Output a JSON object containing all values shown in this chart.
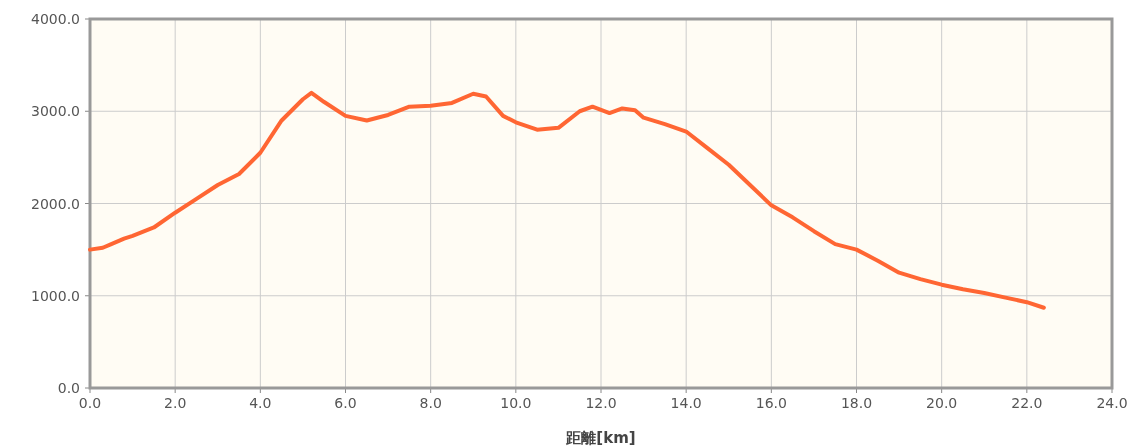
{
  "chart_data": {
    "type": "line",
    "xlabel": "距離[km]",
    "grid": true,
    "x": [
      0,
      0.3,
      0.5,
      0.8,
      1.0,
      1.5,
      2.0,
      2.5,
      3.0,
      3.5,
      4.0,
      4.5,
      5.0,
      5.2,
      5.5,
      6.0,
      6.5,
      7.0,
      7.5,
      8.0,
      8.5,
      9.0,
      9.3,
      9.7,
      10.0,
      10.5,
      11.0,
      11.5,
      11.8,
      12.2,
      12.5,
      12.8,
      13.0,
      13.5,
      14.0,
      14.5,
      15.0,
      15.5,
      16.0,
      16.5,
      17.0,
      17.5,
      18.0,
      18.5,
      19.0,
      19.5,
      20.0,
      20.5,
      21.0,
      21.5,
      22.0,
      22.4
    ],
    "series": [
      {
        "color": "#ff6633",
        "values": [
          1500,
          1520,
          1560,
          1620,
          1650,
          1740,
          1900,
          2050,
          2200,
          2320,
          2550,
          2900,
          3130,
          3200,
          3100,
          2950,
          2900,
          2960,
          3050,
          3060,
          3090,
          3190,
          3160,
          2950,
          2880,
          2800,
          2820,
          3000,
          3050,
          2980,
          3030,
          3010,
          2930,
          2860,
          2780,
          2600,
          2420,
          2200,
          1980,
          1850,
          1700,
          1560,
          1500,
          1380,
          1250,
          1180,
          1120,
          1070,
          1030,
          980,
          930,
          870
        ]
      }
    ],
    "xlim": [
      0,
      24
    ],
    "ylim": [
      0,
      4000
    ],
    "xticks": [
      {
        "value": 0,
        "label": "0.0"
      },
      {
        "value": 2,
        "label": "2.0"
      },
      {
        "value": 4,
        "label": "4.0"
      },
      {
        "value": 6,
        "label": "6.0"
      },
      {
        "value": 8,
        "label": "8.0"
      },
      {
        "value": 10,
        "label": "10.0"
      },
      {
        "value": 12,
        "label": "12.0"
      },
      {
        "value": 14,
        "label": "14.0"
      },
      {
        "value": 16,
        "label": "16.0"
      },
      {
        "value": 18,
        "label": "18.0"
      },
      {
        "value": 20,
        "label": "20.0"
      },
      {
        "value": 22,
        "label": "22.0"
      },
      {
        "value": 24,
        "label": "24.0"
      }
    ],
    "yticks": [
      {
        "value": 0,
        "label": "0.0"
      },
      {
        "value": 1000,
        "label": "1000.0"
      },
      {
        "value": 2000,
        "label": "2000.0"
      },
      {
        "value": 3000,
        "label": "3000.0"
      },
      {
        "value": 4000,
        "label": "4000.0"
      }
    ]
  }
}
